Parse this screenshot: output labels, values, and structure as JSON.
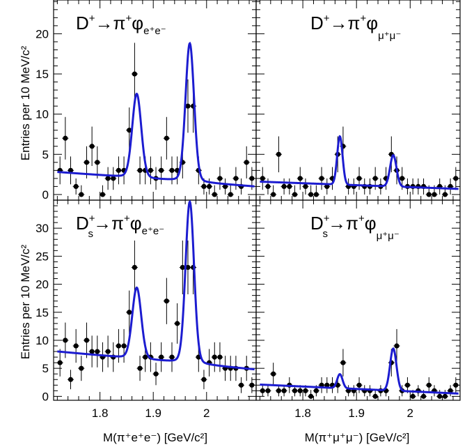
{
  "figure": {
    "ylabel": "Entries per 10 MeV/c²",
    "xlabel_left": "M(π⁺e⁺e⁻) [GeV/c²]",
    "xlabel_right": "M(π⁺μ⁺μ⁻) [GeV/c²]",
    "x_ticks": [
      "1.8",
      "1.9",
      "2"
    ],
    "colors": {
      "fit": "#1c1cd0",
      "points": "#000000",
      "frame": "#000000"
    }
  },
  "chart_data": [
    {
      "type": "scatter",
      "panel": "top-left",
      "title": {
        "particle": "D",
        "particle_sup": "+",
        "decay": "π",
        "decay_sup": "+",
        "phi_sub": "e⁺e⁻"
      },
      "xlim": [
        1.713,
        2.093
      ],
      "ylim": [
        -0.7,
        24.2
      ],
      "y_ticks": [
        0,
        5,
        10,
        15,
        20
      ],
      "points": [
        [
          1.725,
          3
        ],
        [
          1.735,
          7
        ],
        [
          1.745,
          3
        ],
        [
          1.755,
          1
        ],
        [
          1.765,
          0
        ],
        [
          1.775,
          4
        ],
        [
          1.785,
          6
        ],
        [
          1.795,
          4
        ],
        [
          1.805,
          0
        ],
        [
          1.815,
          2
        ],
        [
          1.825,
          2
        ],
        [
          1.835,
          3
        ],
        [
          1.845,
          3
        ],
        [
          1.855,
          8
        ],
        [
          1.865,
          15
        ],
        [
          1.875,
          3
        ],
        [
          1.885,
          3
        ],
        [
          1.895,
          3
        ],
        [
          1.905,
          2
        ],
        [
          1.915,
          3
        ],
        [
          1.925,
          7
        ],
        [
          1.935,
          3
        ],
        [
          1.945,
          3
        ],
        [
          1.955,
          4
        ],
        [
          1.965,
          11
        ],
        [
          1.975,
          11
        ],
        [
          1.985,
          3
        ],
        [
          1.995,
          1
        ],
        [
          2.005,
          1
        ],
        [
          2.015,
          0
        ],
        [
          2.025,
          2
        ],
        [
          2.035,
          1
        ],
        [
          2.045,
          0
        ],
        [
          2.055,
          2
        ],
        [
          2.065,
          1
        ],
        [
          2.075,
          4
        ],
        [
          2.085,
          2
        ]
      ],
      "fit": {
        "bkg": [
          2.8,
          1.0
        ],
        "peaks": [
          {
            "mu": 1.869,
            "amp": 9.4,
            "sigma": 0.0085,
            "gamma": 0.01
          },
          {
            "mu": 1.9685,
            "amp": 15.5,
            "sigma": 0.008,
            "gamma": 0.01
          }
        ]
      }
    },
    {
      "type": "scatter",
      "panel": "top-right",
      "title": {
        "particle": "D",
        "particle_sup": "+",
        "decay": "π",
        "decay_sup": "+",
        "phi_sub": "μ⁺μ⁻"
      },
      "xlim": [
        1.713,
        2.093
      ],
      "ylim": [
        -0.7,
        24.2
      ],
      "y_ticks": [
        0,
        5,
        10,
        15,
        20
      ],
      "points": [
        [
          1.725,
          2
        ],
        [
          1.735,
          1
        ],
        [
          1.745,
          0
        ],
        [
          1.755,
          5
        ],
        [
          1.765,
          1
        ],
        [
          1.775,
          1
        ],
        [
          1.785,
          0
        ],
        [
          1.795,
          2
        ],
        [
          1.805,
          1
        ],
        [
          1.815,
          0
        ],
        [
          1.825,
          0
        ],
        [
          1.835,
          2
        ],
        [
          1.845,
          1
        ],
        [
          1.855,
          2
        ],
        [
          1.865,
          5
        ],
        [
          1.875,
          6
        ],
        [
          1.885,
          1
        ],
        [
          1.895,
          1
        ],
        [
          1.905,
          2
        ],
        [
          1.915,
          1
        ],
        [
          1.925,
          1
        ],
        [
          1.935,
          2
        ],
        [
          1.945,
          1
        ],
        [
          1.955,
          2
        ],
        [
          1.965,
          5
        ],
        [
          1.975,
          3
        ],
        [
          1.985,
          2
        ],
        [
          1.995,
          1
        ],
        [
          2.005,
          1
        ],
        [
          2.015,
          1
        ],
        [
          2.025,
          1
        ],
        [
          2.035,
          0
        ],
        [
          2.045,
          0
        ],
        [
          2.055,
          1
        ],
        [
          2.065,
          0
        ],
        [
          2.075,
          1
        ],
        [
          2.085,
          2
        ]
      ],
      "fit": {
        "bkg": [
          1.6,
          0.7
        ],
        "peaks": [
          {
            "mu": 1.869,
            "amp": 6.0,
            "sigma": 0.005,
            "gamma": 0.0
          },
          {
            "mu": 1.9685,
            "amp": 3.9,
            "sigma": 0.006,
            "gamma": 0.0
          }
        ]
      }
    },
    {
      "type": "scatter",
      "panel": "bottom-left",
      "title": {
        "particle": "D",
        "particle_sup": "+",
        "particle_sub": "s",
        "decay": "π",
        "decay_sup": "+",
        "phi_sub": "e⁺e⁻"
      },
      "xlim": [
        1.713,
        2.093
      ],
      "ylim": [
        -0.7,
        35
      ],
      "y_ticks": [
        0,
        5,
        10,
        15,
        20,
        25,
        30
      ],
      "points": [
        [
          1.725,
          6
        ],
        [
          1.735,
          10
        ],
        [
          1.745,
          3
        ],
        [
          1.755,
          9
        ],
        [
          1.765,
          5
        ],
        [
          1.775,
          10
        ],
        [
          1.785,
          8
        ],
        [
          1.795,
          8
        ],
        [
          1.805,
          7
        ],
        [
          1.815,
          8
        ],
        [
          1.825,
          7
        ],
        [
          1.835,
          9
        ],
        [
          1.845,
          9
        ],
        [
          1.855,
          15
        ],
        [
          1.865,
          23
        ],
        [
          1.875,
          5
        ],
        [
          1.885,
          7
        ],
        [
          1.895,
          7
        ],
        [
          1.905,
          4
        ],
        [
          1.915,
          7
        ],
        [
          1.925,
          17
        ],
        [
          1.935,
          7
        ],
        [
          1.945,
          13
        ],
        [
          1.955,
          23
        ],
        [
          1.965,
          23
        ],
        [
          1.975,
          23
        ],
        [
          1.985,
          7
        ],
        [
          1.995,
          3
        ],
        [
          2.005,
          6
        ],
        [
          2.015,
          7
        ],
        [
          2.025,
          7
        ],
        [
          2.035,
          5
        ],
        [
          2.045,
          5
        ],
        [
          2.055,
          5
        ],
        [
          2.065,
          2
        ],
        [
          2.075,
          5
        ],
        [
          2.085,
          2
        ]
      ],
      "fit": {
        "bkg": [
          8.0,
          4.8
        ],
        "peaks": [
          {
            "mu": 1.869,
            "amp": 11.4,
            "sigma": 0.0085,
            "gamma": 0.01
          },
          {
            "mu": 1.9685,
            "amp": 26.0,
            "sigma": 0.008,
            "gamma": 0.01
          }
        ]
      }
    },
    {
      "type": "scatter",
      "panel": "bottom-right",
      "title": {
        "particle": "D",
        "particle_sup": "+",
        "particle_sub": "s",
        "decay": "π",
        "decay_sup": "+",
        "phi_sub": "μ⁺μ⁻"
      },
      "xlim": [
        1.713,
        2.093
      ],
      "ylim": [
        -0.7,
        35
      ],
      "y_ticks": [
        0,
        5,
        10,
        15,
        20,
        25,
        30
      ],
      "points": [
        [
          1.725,
          1
        ],
        [
          1.735,
          1
        ],
        [
          1.745,
          4
        ],
        [
          1.755,
          1
        ],
        [
          1.765,
          1
        ],
        [
          1.775,
          2
        ],
        [
          1.785,
          1
        ],
        [
          1.795,
          1
        ],
        [
          1.805,
          1
        ],
        [
          1.815,
          0
        ],
        [
          1.825,
          1
        ],
        [
          1.835,
          2
        ],
        [
          1.845,
          2
        ],
        [
          1.855,
          2
        ],
        [
          1.865,
          2
        ],
        [
          1.875,
          6
        ],
        [
          1.885,
          1
        ],
        [
          1.895,
          1
        ],
        [
          1.905,
          2
        ],
        [
          1.915,
          1
        ],
        [
          1.925,
          1
        ],
        [
          1.935,
          0
        ],
        [
          1.945,
          1
        ],
        [
          1.955,
          1
        ],
        [
          1.965,
          6
        ],
        [
          1.975,
          9
        ],
        [
          1.985,
          1
        ],
        [
          1.995,
          2
        ],
        [
          2.005,
          0
        ],
        [
          2.015,
          1
        ],
        [
          2.025,
          0
        ],
        [
          2.035,
          2
        ],
        [
          2.045,
          1
        ],
        [
          2.055,
          0
        ],
        [
          2.065,
          0
        ],
        [
          2.075,
          1
        ],
        [
          2.085,
          2
        ]
      ],
      "fit": {
        "bkg": [
          2.1,
          0.5
        ],
        "peaks": [
          {
            "mu": 1.869,
            "amp": 2.5,
            "sigma": 0.005,
            "gamma": 0.0
          },
          {
            "mu": 1.9685,
            "amp": 7.5,
            "sigma": 0.006,
            "gamma": 0.0
          }
        ]
      }
    }
  ]
}
